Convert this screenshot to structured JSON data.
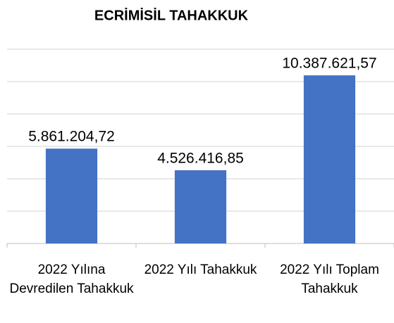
{
  "chart_data": {
    "type": "bar",
    "title": "ECRİMİSİL TAHAKKUK",
    "categories": [
      "2022 Yılına Devredilen Tahakkuk",
      "2022 Yılı Tahakkuk",
      "2022 Yılı Toplam Tahakkuk"
    ],
    "values": [
      5861204.72,
      4526416.85,
      10387621.57
    ],
    "value_labels": [
      "5.861.204,72",
      "4.526.416,85",
      "10.387.621,57"
    ],
    "color": "#4472c4",
    "ylim": [
      0,
      12000000
    ],
    "yticks": [
      0,
      2000000,
      4000000,
      6000000,
      8000000,
      10000000,
      12000000
    ],
    "grid": true
  }
}
